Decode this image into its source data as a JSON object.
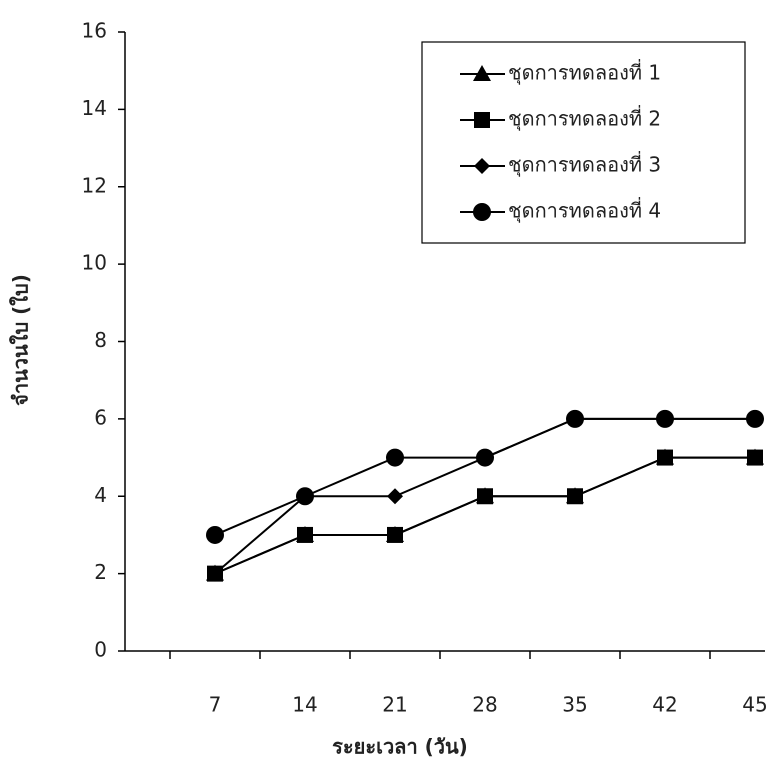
{
  "chart_data": {
    "type": "line",
    "x_label": "ระยะเวลา (วัน)",
    "y_label": "จำนวนใบ (ใบ)",
    "categories": [
      "7",
      "14",
      "21",
      "28",
      "35",
      "42",
      "45"
    ],
    "series": [
      {
        "name": "ชุดการทดลองที่ 1",
        "color": "#000000",
        "marker": "triangle",
        "values": [
          2,
          3,
          3,
          4,
          4,
          5,
          5
        ]
      },
      {
        "name": "ชุดการทดลองที่ 2",
        "color": "#000000",
        "marker": "square",
        "values": [
          2,
          3,
          3,
          4,
          4,
          5,
          5
        ]
      },
      {
        "name": "ชุดการทดลองที่ 3",
        "color": "#000000",
        "marker": "diamond",
        "values": [
          2,
          4,
          4,
          5,
          6,
          6,
          6
        ]
      },
      {
        "name": "ชุดการทดลองที่ 4",
        "color": "#000000",
        "marker": "circle",
        "values": [
          3,
          4,
          5,
          5,
          6,
          6,
          6
        ]
      }
    ],
    "ylim": [
      0,
      16
    ],
    "yticks": [
      0,
      2,
      4,
      6,
      8,
      10,
      12,
      14,
      16
    ],
    "grid": false,
    "legend": "upper right"
  }
}
